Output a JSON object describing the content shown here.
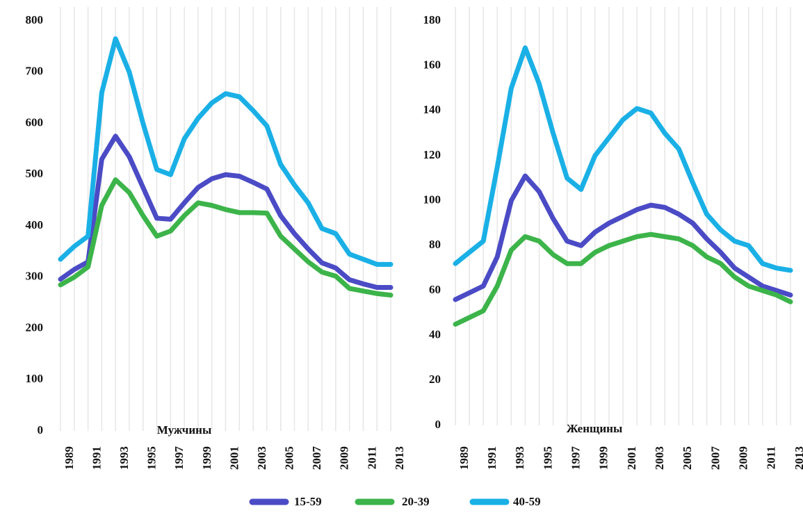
{
  "chart_data": [
    {
      "type": "line",
      "title": "Мужчины",
      "categories": [
        "1989",
        null,
        "1991",
        null,
        "1993",
        null,
        "1995",
        null,
        "1997",
        null,
        "1999",
        null,
        "2001",
        null,
        "2003",
        null,
        "2005",
        null,
        "2007",
        null,
        "2009",
        null,
        "2011",
        null,
        "2013"
      ],
      "ylim": [
        0,
        800
      ],
      "yticks": [
        0,
        100,
        200,
        300,
        400,
        500,
        600,
        700,
        800
      ],
      "grid": true,
      "series": [
        {
          "name": "15-59",
          "color": "#4b4bc6",
          "values": [
            296,
            315,
            330,
            530,
            575,
            535,
            475,
            415,
            413,
            445,
            475,
            492,
            500,
            497,
            485,
            472,
            420,
            385,
            355,
            328,
            318,
            295,
            287,
            280,
            280
          ]
        },
        {
          "name": "20-39",
          "color": "#3cb44a",
          "values": [
            285,
            300,
            320,
            440,
            490,
            465,
            420,
            380,
            390,
            420,
            445,
            440,
            432,
            426,
            426,
            425,
            380,
            355,
            330,
            310,
            302,
            278,
            273,
            268,
            265
          ]
        },
        {
          "name": "40-59",
          "color": "#1ab0e6",
          "values": [
            335,
            360,
            380,
            660,
            765,
            700,
            600,
            510,
            500,
            570,
            610,
            640,
            658,
            652,
            625,
            595,
            520,
            480,
            445,
            395,
            385,
            345,
            335,
            325,
            325
          ]
        }
      ]
    },
    {
      "type": "line",
      "title": "Женщины",
      "categories": [
        "1989",
        null,
        "1991",
        null,
        "1993",
        null,
        "1995",
        null,
        "1997",
        null,
        "1999",
        null,
        "2001",
        null,
        "2003",
        null,
        "2005",
        null,
        "2007",
        null,
        "2009",
        null,
        "2011",
        null,
        "2013"
      ],
      "ylim": [
        0,
        180
      ],
      "yticks": [
        0,
        20,
        40,
        60,
        80,
        100,
        120,
        140,
        160,
        180
      ],
      "grid": true,
      "series": [
        {
          "color": "#4b4bc6",
          "values": [
            56,
            59,
            62,
            75,
            100,
            111,
            104,
            92,
            82,
            80,
            86,
            90,
            93,
            96,
            98,
            97,
            94,
            90,
            83,
            77,
            70,
            66,
            62,
            60,
            58
          ]
        },
        {
          "color": "#3cb44a",
          "values": [
            45,
            48,
            51,
            62,
            78,
            84,
            82,
            76,
            72,
            72,
            77,
            80,
            82,
            84,
            85,
            84,
            83,
            80,
            75,
            72,
            66,
            62,
            60,
            58,
            55
          ]
        },
        {
          "color": "#1ab0e6",
          "values": [
            72,
            77,
            82,
            115,
            150,
            168,
            152,
            130,
            110,
            105,
            120,
            128,
            136,
            141,
            139,
            130,
            123,
            108,
            94,
            87,
            82,
            80,
            72,
            70,
            69
          ]
        }
      ]
    }
  ]
}
